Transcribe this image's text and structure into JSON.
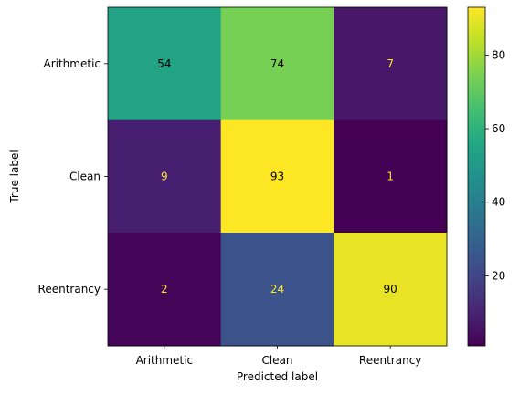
{
  "chart_data": {
    "type": "heatmap",
    "title": "",
    "xlabel": "Predicted label",
    "ylabel": "True label",
    "x_categories": [
      "Arithmetic",
      "Clean",
      "Reentrancy"
    ],
    "y_categories": [
      "Arithmetic",
      "Clean",
      "Reentrancy"
    ],
    "values": [
      [
        54,
        74,
        7
      ],
      [
        9,
        93,
        1
      ],
      [
        2,
        24,
        90
      ]
    ],
    "colormap": "viridis",
    "vmin": 1,
    "vmax": 93,
    "colorbar_ticks": [
      20,
      40,
      60,
      80
    ],
    "text_color_dark": "#000000",
    "text_color_light": "#fde725"
  }
}
